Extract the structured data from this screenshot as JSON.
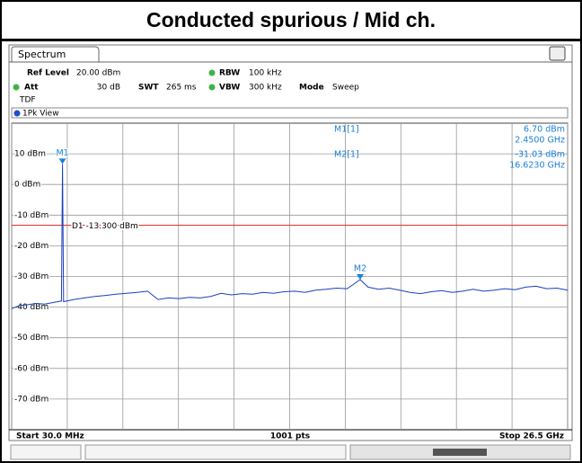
{
  "chart_data": {
    "type": "line",
    "title": "Conducted spurious / Mid ch.",
    "header": {
      "tab": "Spectrum",
      "ref_level_label": "Ref Level",
      "ref_level": "20.00 dBm",
      "att_label": "Att",
      "att": "30 dB",
      "swt_label": "SWT",
      "swt": "265 ms",
      "rbw_label": "RBW",
      "rbw": "100 kHz",
      "vbw_label": "VBW",
      "vbw": "300 kHz",
      "mode_label": "Mode",
      "mode": "Sweep",
      "tdf": "TDF",
      "view": "1Pk View"
    },
    "x_start_label": "Start 30.0 MHz",
    "x_stop_label": "Stop 26.5 GHz",
    "points_label": "1001 pts",
    "xlim": [
      30,
      26500
    ],
    "xticks": [
      30,
      2677,
      5324,
      7971,
      10618,
      13265,
      15912,
      18559,
      21206,
      23853,
      26500
    ],
    "ylim": [
      -80,
      20
    ],
    "yticks": [
      {
        "value": 10,
        "label": "10 dBm"
      },
      {
        "value": 0,
        "label": "0 dBm"
      },
      {
        "value": -10,
        "label": "-10 dBm"
      },
      {
        "value": -20,
        "label": "-20 dBm"
      },
      {
        "value": -30,
        "label": "-30 dBm"
      },
      {
        "value": -40,
        "label": "-40 dBm"
      },
      {
        "value": -50,
        "label": "-50 dBm"
      },
      {
        "value": -60,
        "label": "-60 dBm"
      },
      {
        "value": -70,
        "label": "-70 dBm"
      }
    ],
    "grid": true,
    "display_line": {
      "label": "D1 -13.300 dBm",
      "value": -13.3,
      "color": "#e03030"
    },
    "series": [
      {
        "color": "#1a3fc0",
        "x": [
          30,
          400,
          800,
          1200,
          1600,
          2000,
          2400,
          2450,
          2500,
          3000,
          3500,
          4000,
          4500,
          5000,
          5500,
          6000,
          6500,
          7000,
          7500,
          8000,
          8500,
          9000,
          9500,
          10000,
          10500,
          11000,
          11500,
          12000,
          12500,
          13000,
          13500,
          14000,
          14500,
          15000,
          15500,
          16000,
          16623,
          17000,
          17500,
          18000,
          18500,
          19000,
          19500,
          20000,
          20500,
          21000,
          21500,
          22000,
          22500,
          23000,
          23500,
          24000,
          24500,
          25000,
          25500,
          26000,
          26500
        ],
        "values": [
          -40.5,
          -39.5,
          -39.2,
          -38.8,
          -39.0,
          -38.5,
          -38.0,
          6.7,
          -38.2,
          -37.5,
          -37.0,
          -36.5,
          -36.2,
          -35.8,
          -35.5,
          -35.2,
          -34.8,
          -37.5,
          -37.0,
          -37.2,
          -36.8,
          -37.0,
          -36.5,
          -35.5,
          -36.0,
          -35.6,
          -35.8,
          -35.2,
          -35.5,
          -35.0,
          -34.8,
          -35.2,
          -34.5,
          -34.2,
          -33.8,
          -34.0,
          -31.03,
          -33.5,
          -34.2,
          -33.8,
          -34.5,
          -35.2,
          -35.6,
          -35.0,
          -34.6,
          -35.2,
          -34.8,
          -34.2,
          -34.8,
          -34.5,
          -34.0,
          -34.3,
          -33.5,
          -33.2,
          -34.0,
          -33.8,
          -34.5
        ]
      }
    ],
    "markers": [
      {
        "name": "M1",
        "label": "M1[1]",
        "x": 2450,
        "x_label": "2.4500 GHz",
        "value": 6.7,
        "value_label": "6.70 dBm"
      },
      {
        "name": "M2",
        "label": "M2[1]",
        "x": 16623,
        "x_label": "16.6230 GHz",
        "value": -31.03,
        "value_label": "-31.03 dBm"
      }
    ],
    "marker_color": "#1a7fd8"
  }
}
